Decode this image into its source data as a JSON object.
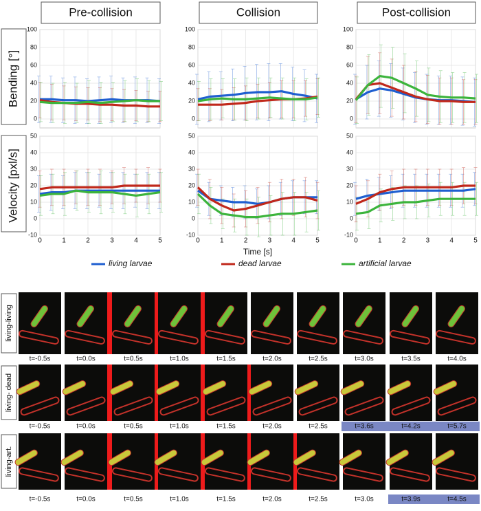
{
  "chart_data": [
    {
      "type": "line",
      "title": "Pre-collision",
      "ylabel": "Bending [°]",
      "ylim": [
        -10,
        100
      ],
      "yticks": [
        0,
        20,
        40,
        60,
        80,
        100
      ],
      "xlim": [
        0,
        5
      ],
      "grid": true,
      "x": [
        0,
        0.5,
        1,
        1.5,
        2,
        2.5,
        3,
        3.5,
        4,
        4.5,
        5
      ],
      "series": [
        {
          "color": "#1f5fd0",
          "values": [
            22,
            22,
            21,
            21,
            20,
            21,
            22,
            21,
            21,
            21,
            20
          ],
          "errors": [
            26,
            26,
            25,
            26,
            25,
            26,
            26,
            25,
            26,
            25,
            25
          ]
        },
        {
          "color": "#c0281b",
          "values": [
            21,
            19,
            18,
            17,
            17,
            16,
            16,
            15,
            15,
            14,
            14
          ],
          "errors": [
            20,
            20,
            19,
            19,
            18,
            19,
            18,
            18,
            17,
            17,
            17
          ]
        },
        {
          "color": "#3cb43c",
          "values": [
            19,
            18,
            18,
            18,
            19,
            18,
            19,
            20,
            21,
            20,
            20
          ],
          "errors": [
            22,
            22,
            23,
            22,
            24,
            23,
            22,
            23,
            24,
            23,
            22
          ]
        }
      ]
    },
    {
      "type": "line",
      "title": "Collision",
      "ylim": [
        -10,
        100
      ],
      "yticks": [
        0,
        20,
        40,
        60,
        80,
        100
      ],
      "xlim": [
        0,
        5
      ],
      "grid": true,
      "x": [
        0,
        0.5,
        1,
        1.5,
        2,
        2.5,
        3,
        3.5,
        4,
        4.5,
        5
      ],
      "series": [
        {
          "color": "#1f5fd0",
          "values": [
            22,
            25,
            26,
            27,
            29,
            30,
            30,
            31,
            28,
            26,
            23
          ],
          "errors": [
            28,
            28,
            27,
            29,
            30,
            31,
            32,
            31,
            30,
            29,
            27
          ]
        },
        {
          "color": "#c0281b",
          "values": [
            16,
            16,
            16,
            17,
            18,
            20,
            21,
            22,
            22,
            23,
            25
          ],
          "errors": [
            18,
            18,
            17,
            18,
            19,
            19,
            20,
            21,
            21,
            20,
            20
          ]
        },
        {
          "color": "#3cb43c",
          "values": [
            20,
            22,
            23,
            22,
            22,
            23,
            24,
            23,
            22,
            22,
            24
          ],
          "errors": [
            22,
            23,
            22,
            23,
            24,
            23,
            22,
            23,
            24,
            23,
            22
          ]
        }
      ]
    },
    {
      "type": "line",
      "title": "Post-collision",
      "ylim": [
        -10,
        100
      ],
      "yticks": [
        0,
        20,
        40,
        60,
        80,
        100
      ],
      "xlim": [
        0,
        5
      ],
      "grid": true,
      "x": [
        0,
        0.5,
        1,
        1.5,
        2,
        2.5,
        3,
        3.5,
        4,
        4.5,
        5
      ],
      "series": [
        {
          "color": "#1f5fd0",
          "values": [
            22,
            30,
            34,
            32,
            28,
            24,
            22,
            21,
            21,
            20,
            19
          ],
          "errors": [
            28,
            30,
            31,
            30,
            29,
            28,
            28,
            27,
            27,
            27,
            27
          ]
        },
        {
          "color": "#c0281b",
          "values": [
            22,
            38,
            40,
            35,
            30,
            25,
            22,
            20,
            20,
            19,
            19
          ],
          "errors": [
            26,
            32,
            34,
            32,
            30,
            28,
            27,
            26,
            26,
            25,
            25
          ]
        },
        {
          "color": "#3cb43c",
          "values": [
            21,
            38,
            48,
            46,
            40,
            34,
            27,
            25,
            24,
            24,
            23
          ],
          "errors": [
            26,
            34,
            35,
            34,
            33,
            31,
            30,
            29,
            28,
            28,
            27
          ]
        }
      ]
    },
    {
      "type": "line",
      "ylabel": "Velocity [pxl/s]",
      "ylim": [
        -10,
        50
      ],
      "yticks": [
        -10,
        0,
        10,
        20,
        30,
        40,
        50
      ],
      "xlim": [
        0,
        5
      ],
      "xticks": [
        0,
        1,
        2,
        3,
        4,
        5
      ],
      "grid": true,
      "x": [
        0,
        0.5,
        1,
        1.5,
        2,
        2.5,
        3,
        3.5,
        4,
        4.5,
        5
      ],
      "series": [
        {
          "color": "#1f5fd0",
          "values": [
            15,
            16,
            16,
            17,
            17,
            17,
            17,
            17,
            17,
            17,
            17
          ],
          "errors": [
            11,
            11,
            10,
            11,
            11,
            10,
            11,
            11,
            10,
            11,
            11
          ]
        },
        {
          "color": "#c0281b",
          "values": [
            18,
            19,
            19,
            19,
            19,
            19,
            19,
            20,
            20,
            20,
            20
          ],
          "errors": [
            11,
            11,
            11,
            10,
            11,
            11,
            10,
            11,
            10,
            11,
            10
          ]
        },
        {
          "color": "#3cb43c",
          "values": [
            14,
            15,
            15,
            17,
            16,
            16,
            16,
            15,
            14,
            15,
            16
          ],
          "errors": [
            12,
            12,
            13,
            12,
            12,
            13,
            12,
            12,
            13,
            12,
            12
          ]
        }
      ]
    },
    {
      "type": "line",
      "xlabel": "Time [s]",
      "ylim": [
        -10,
        50
      ],
      "yticks": [
        -10,
        0,
        10,
        20,
        30,
        40,
        50
      ],
      "xlim": [
        0,
        5
      ],
      "xticks": [
        0,
        1,
        2,
        3,
        4,
        5
      ],
      "grid": true,
      "x": [
        0,
        0.5,
        1,
        1.5,
        2,
        2.5,
        3,
        3.5,
        4,
        4.5,
        5
      ],
      "series": [
        {
          "name": "living larvae",
          "color": "#1f5fd0",
          "values": [
            17,
            12,
            11,
            10,
            10,
            9,
            10,
            12,
            13,
            13,
            13
          ],
          "errors": [
            10,
            10,
            9,
            9,
            10,
            9,
            10,
            10,
            10,
            10,
            10
          ]
        },
        {
          "name": "dead larvae",
          "color": "#c0281b",
          "values": [
            19,
            12,
            8,
            5,
            6,
            8,
            10,
            12,
            13,
            13,
            11
          ],
          "errors": [
            11,
            12,
            11,
            10,
            11,
            11,
            12,
            12,
            11,
            12,
            11
          ]
        },
        {
          "name": "artificial larvae",
          "color": "#3cb43c",
          "values": [
            15,
            8,
            3,
            2,
            1,
            1,
            2,
            3,
            3,
            4,
            5
          ],
          "errors": [
            12,
            11,
            9,
            10,
            11,
            12,
            12,
            13,
            13,
            12,
            12
          ]
        }
      ]
    },
    {
      "type": "line",
      "ylim": [
        -10,
        50
      ],
      "yticks": [
        -10,
        0,
        10,
        20,
        30,
        40,
        50
      ],
      "xlim": [
        0,
        5
      ],
      "xticks": [
        0,
        1,
        2,
        3,
        4,
        5
      ],
      "grid": true,
      "x": [
        0,
        0.5,
        1,
        1.5,
        2,
        2.5,
        3,
        3.5,
        4,
        4.5,
        5
      ],
      "series": [
        {
          "color": "#1f5fd0",
          "values": [
            12,
            14,
            15,
            16,
            17,
            17,
            17,
            17,
            17,
            17,
            18
          ],
          "errors": [
            10,
            10,
            10,
            10,
            10,
            10,
            10,
            10,
            10,
            10,
            10
          ]
        },
        {
          "color": "#c0281b",
          "values": [
            9,
            12,
            16,
            18,
            19,
            19,
            19,
            19,
            19,
            20,
            20
          ],
          "errors": [
            11,
            11,
            11,
            11,
            11,
            11,
            11,
            11,
            11,
            11,
            11
          ]
        },
        {
          "color": "#3cb43c",
          "values": [
            3,
            4,
            8,
            9,
            10,
            10,
            11,
            12,
            12,
            12,
            12
          ],
          "errors": [
            10,
            10,
            10,
            10,
            10,
            10,
            10,
            10,
            10,
            10,
            10
          ]
        }
      ]
    }
  ],
  "image_grid": {
    "rows": [
      {
        "label": "living-living",
        "times": [
          "t=-0.5s",
          "t=0.0s",
          "t=0.5s",
          "t=1.0s",
          "t=1.5s",
          "t=2.0s",
          "t=2.5s",
          "t=3.0s",
          "t=3.5s",
          "t=4.0s"
        ]
      },
      {
        "label": "living- dead",
        "times": [
          "t=-0.5s",
          "t=0.0s",
          "t=0.5s",
          "t=1.0s",
          "t=1.5s",
          "t=2.0s",
          "t=2.5s",
          "t=3.6s",
          "t=4.2s",
          "t=5.7s"
        ]
      },
      {
        "label": "living-art.",
        "times": [
          "t=-0.5s",
          "t=0.0s",
          "t=0.5s",
          "t=1.0s",
          "t=1.5s",
          "t=2.0s",
          "t=2.5s",
          "t=3.0s",
          "t=3.9s",
          "t=4.5s"
        ]
      }
    ]
  }
}
